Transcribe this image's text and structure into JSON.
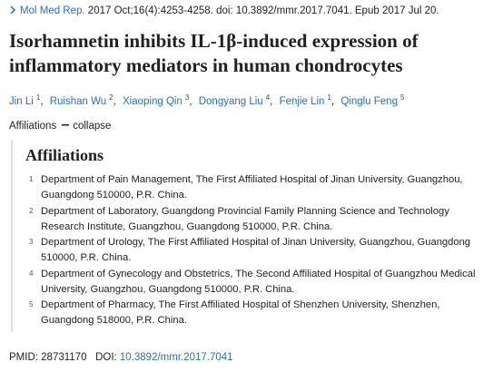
{
  "citation": {
    "journal": "Mol Med Rep.",
    "details": "2017 Oct;16(4):4253-4258. doi: 10.3892/mmr.2017.7041. Epub 2017 Jul 20."
  },
  "title": "Isorhamnetin inhibits IL-1β-induced expression of inflammatory mediators in human chondrocytes",
  "authors": [
    {
      "name": "Jin Li",
      "affiliation": "1"
    },
    {
      "name": "Ruishan Wu",
      "affiliation": "2"
    },
    {
      "name": "Xiaoping Qin",
      "affiliation": "3"
    },
    {
      "name": "Dongyang Liu",
      "affiliation": "4"
    },
    {
      "name": "Fenjie Lin",
      "affiliation": "1"
    },
    {
      "name": "Qinglu Feng",
      "affiliation": "5"
    }
  ],
  "affiliations_toggle": {
    "label": "Affiliations",
    "action": "collapse"
  },
  "affiliations": {
    "heading": "Affiliations",
    "items": [
      {
        "number": "1",
        "text": "Department of Pain Management, The First Affiliated Hospital of Jinan University, Guangzhou, Guangdong 510000, P.R. China."
      },
      {
        "number": "2",
        "text": "Department of Laboratory, Guangdong Provincial Family Planning Science and Technology Research Institute, Guangzhou, Guangdong 510000, P.R. China."
      },
      {
        "number": "3",
        "text": "Department of Urology, The First Affiliated Hospital of Jinan University, Guangzhou, Guangdong 510000, P.R. China."
      },
      {
        "number": "4",
        "text": "Department of Gynecology and Obstetrics, The Second Affiliated Hospital of Guangzhou Medical University, Guangzhou, Guangdong 510000, P.R. China."
      },
      {
        "number": "5",
        "text": "Department of Pharmacy, The First Affiliated Hospital of Shenzhen University, Shenzhen, Guangdong 518000, P.R. China."
      }
    ]
  },
  "identifiers": {
    "pmid_label": "PMID:",
    "pmid": "28731170",
    "doi_label": "DOI:",
    "doi": "10.3892/mmr.2017.7041"
  }
}
